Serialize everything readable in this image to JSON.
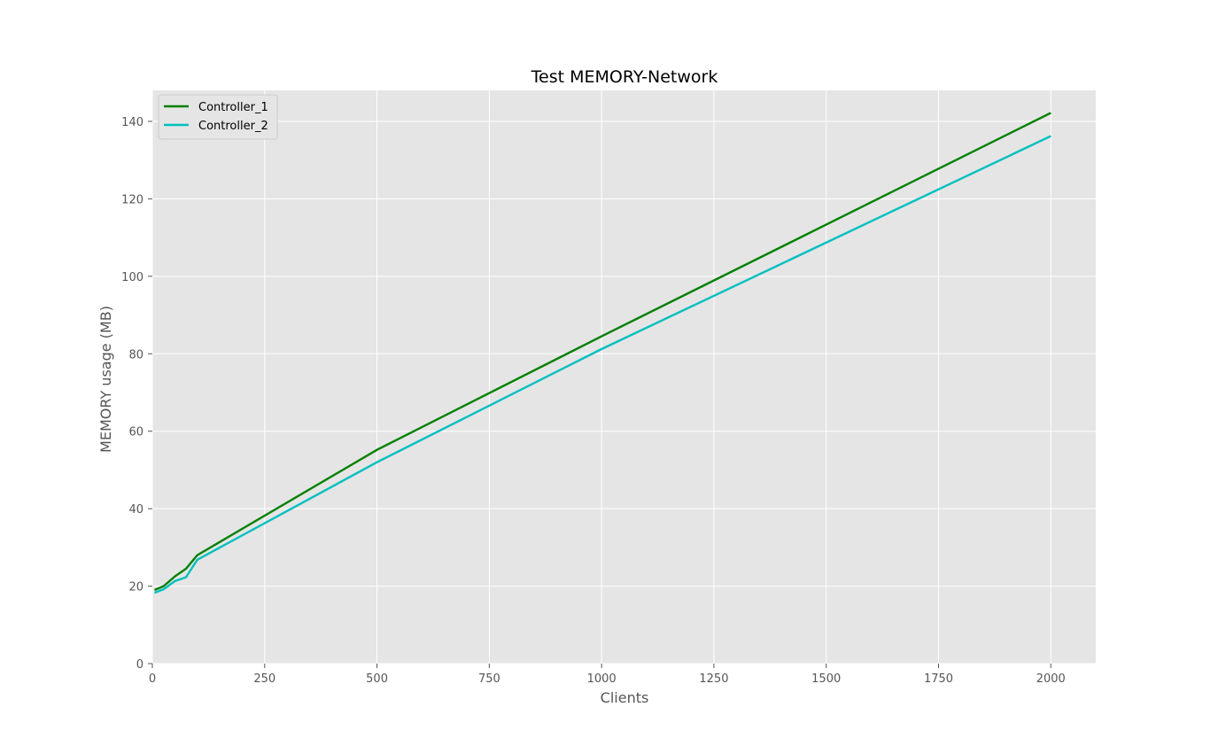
{
  "chart_data": {
    "type": "line",
    "title": "Test MEMORY-Network",
    "xlabel": "Clients",
    "ylabel": "MEMORY usage (MB)",
    "xlim": [
      0,
      2100
    ],
    "ylim": [
      0,
      148
    ],
    "xticks": [
      0,
      250,
      500,
      750,
      1000,
      1250,
      1500,
      1750,
      2000
    ],
    "yticks": [
      0,
      20,
      40,
      60,
      80,
      100,
      120,
      140
    ],
    "grid": true,
    "legend_position": "top-left",
    "series": [
      {
        "name": "Controller_1",
        "color": "#008000",
        "x": [
          5,
          25,
          50,
          75,
          100,
          500,
          1000,
          2000
        ],
        "y": [
          19.0,
          20.0,
          22.5,
          24.5,
          28.0,
          55.2,
          84.5,
          142.2
        ]
      },
      {
        "name": "Controller_2",
        "color": "#00bfbf",
        "x": [
          5,
          25,
          50,
          75,
          100,
          500,
          1000,
          2000
        ],
        "y": [
          18.3,
          19.2,
          21.3,
          22.3,
          26.8,
          52.0,
          81.2,
          136.2
        ]
      }
    ],
    "colors": {
      "plot_background": "#e5e5e5",
      "grid": "#ffffff"
    }
  }
}
